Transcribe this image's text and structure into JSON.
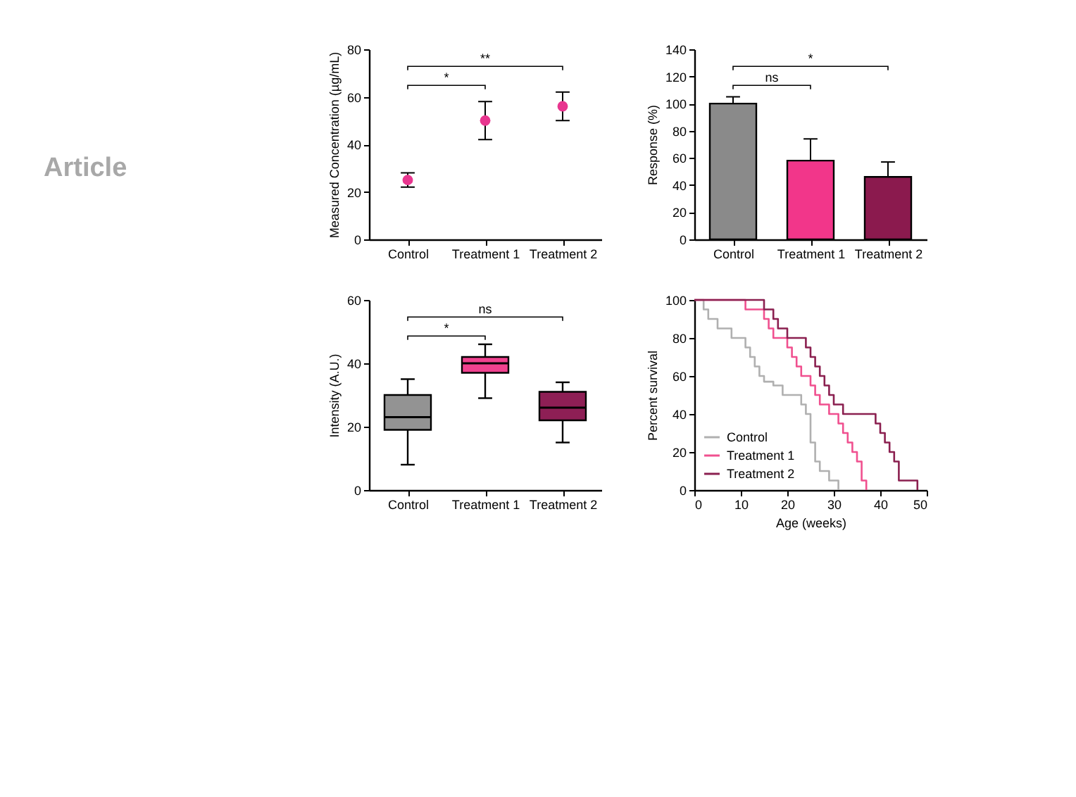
{
  "chart_data": [
    {
      "type": "other",
      "title": "Article"
    },
    {
      "type": "scatter",
      "categories": [
        "Control",
        "Treatment 1",
        "Treatment 2"
      ],
      "values": [
        25,
        50,
        56
      ],
      "errors": [
        3,
        8,
        6
      ],
      "color": "#e8368f",
      "marker": "circle",
      "ylabel": "Measured Concentration (µg/mL)",
      "ylim": [
        0,
        80
      ],
      "yticks": [
        0,
        20,
        40,
        60,
        80
      ],
      "annotations": [
        "*",
        "**"
      ]
    },
    {
      "type": "bar",
      "categories": [
        "Control",
        "Treatment 1",
        "Treatment 2"
      ],
      "values": [
        100,
        58,
        46
      ],
      "errors": [
        [
          100,
          105
        ],
        [
          58,
          74
        ],
        [
          46,
          57
        ]
      ],
      "colors": [
        "#8a8a8a",
        "#f2368a",
        "#8b1a4e"
      ],
      "ylabel": "Response (%)",
      "ylim": [
        0,
        140
      ],
      "yticks": [
        0,
        20,
        40,
        60,
        80,
        100,
        120,
        140
      ],
      "annotations": [
        "ns",
        "*"
      ]
    },
    {
      "type": "box",
      "categories": [
        "Control",
        "Treatment 1",
        "Treatment 2"
      ],
      "boxes": [
        {
          "low": 8,
          "q1": 19,
          "median": 23,
          "q3": 30,
          "high": 35
        },
        {
          "low": 29,
          "q1": 37,
          "median": 40,
          "q3": 42,
          "high": 46
        },
        {
          "low": 15,
          "q1": 22,
          "median": 26,
          "q3": 31,
          "high": 34
        }
      ],
      "colors": [
        "#939393",
        "#f0428f",
        "#8e1f55"
      ],
      "ylabel": "Intensity (A.U.)",
      "ylim": [
        0,
        60
      ],
      "yticks": [
        0,
        20,
        40,
        60
      ],
      "annotations": [
        "*",
        "ns"
      ]
    },
    {
      "type": "step",
      "xlabel": "Age (weeks)",
      "ylabel": "Percent survival",
      "xlim": [
        0,
        50
      ],
      "xticks": [
        0,
        10,
        20,
        30,
        40,
        50
      ],
      "ylim": [
        0,
        100
      ],
      "yticks": [
        0,
        20,
        40,
        60,
        80,
        100
      ],
      "legend": "bottom left",
      "series": [
        {
          "name": "Control",
          "color": "#b0b0b0",
          "x": [
            0,
            2,
            3,
            5,
            8,
            11,
            12,
            13,
            14,
            15,
            17,
            19,
            23,
            24,
            25,
            26,
            27,
            29,
            31
          ],
          "values": [
            100,
            95,
            90,
            85,
            80,
            75,
            70,
            65,
            60,
            57,
            55,
            50,
            45,
            40,
            25,
            15,
            10,
            5,
            0
          ]
        },
        {
          "name": "Treatment 1",
          "color": "#f0508f",
          "x": [
            0,
            11,
            15,
            16,
            17,
            20,
            21,
            22,
            23,
            25,
            26,
            27,
            29,
            31,
            32,
            33,
            34,
            35,
            36,
            37
          ],
          "values": [
            100,
            95,
            90,
            85,
            80,
            75,
            70,
            65,
            60,
            55,
            50,
            45,
            40,
            35,
            30,
            25,
            20,
            15,
            5,
            0
          ]
        },
        {
          "name": "Treatment 2",
          "color": "#8b2050",
          "x": [
            0,
            15,
            17,
            18,
            20,
            24,
            25,
            26,
            27,
            28,
            29,
            30,
            32,
            39,
            40,
            41,
            42,
            43,
            44,
            48
          ],
          "values": [
            100,
            95,
            90,
            85,
            80,
            75,
            70,
            65,
            60,
            55,
            50,
            45,
            40,
            35,
            30,
            25,
            20,
            15,
            5,
            0
          ]
        }
      ]
    }
  ]
}
